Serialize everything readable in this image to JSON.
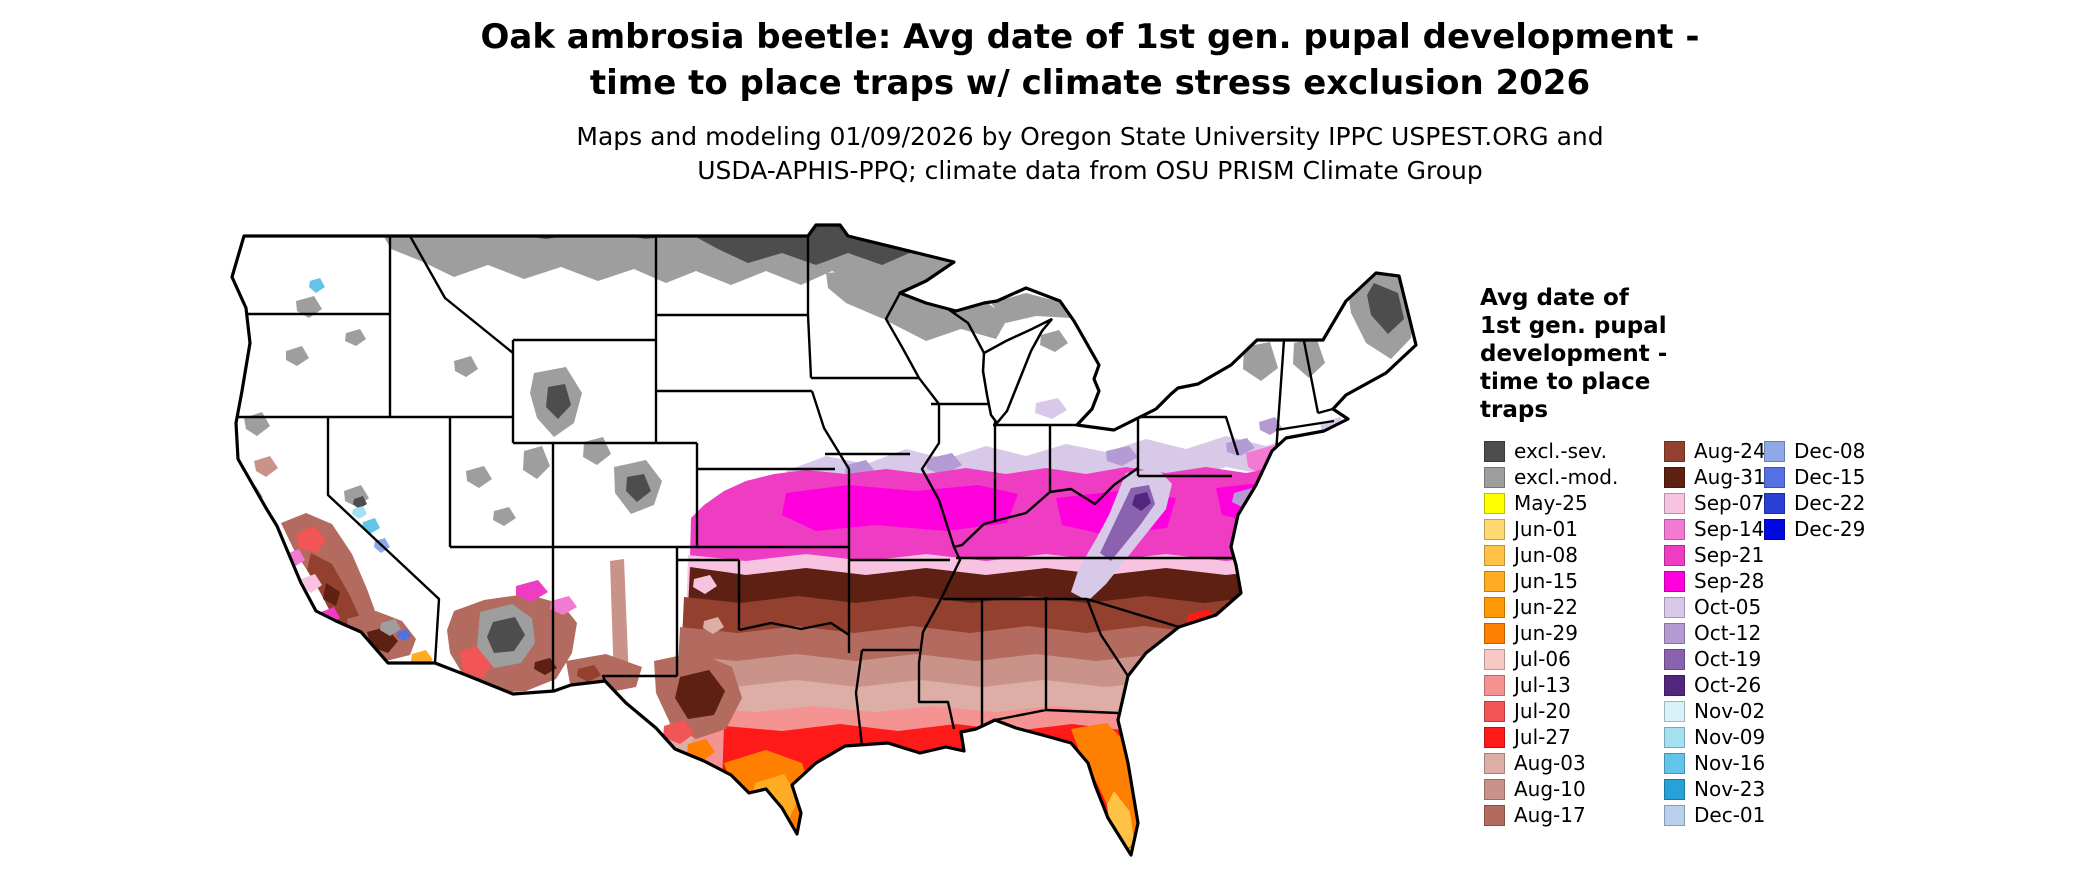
{
  "title": {
    "line1": "Oak ambrosia beetle: Avg date of 1st gen. pupal development -",
    "line2": "time to place traps w/ climate stress exclusion 2026"
  },
  "subtitle": {
    "line1": "Maps and modeling 01/09/2026 by Oregon State University IPPC USPEST.ORG and",
    "line2": "USDA-APHIS-PPQ; climate data from OSU PRISM Climate Group"
  },
  "legend": {
    "title_lines": [
      "Avg date of",
      "1st gen. pupal",
      "development -",
      "time to place",
      "traps"
    ],
    "columns": [
      {
        "entries": [
          {
            "label": "excl.-sev.",
            "color": "#4d4d4d"
          },
          {
            "label": "excl.-mod.",
            "color": "#9e9e9e"
          },
          {
            "label": "May-25",
            "color": "#ffff00"
          },
          {
            "label": "Jun-01",
            "color": "#ffd970"
          },
          {
            "label": "Jun-08",
            "color": "#ffc247"
          },
          {
            "label": "Jun-15",
            "color": "#ffab24"
          },
          {
            "label": "Jun-22",
            "color": "#ff9708"
          },
          {
            "label": "Jun-29",
            "color": "#ff8000"
          },
          {
            "label": "Jul-06",
            "color": "#f8c9c4"
          },
          {
            "label": "Jul-13",
            "color": "#f59393"
          },
          {
            "label": "Jul-20",
            "color": "#f25555"
          },
          {
            "label": "Jul-27",
            "color": "#ff1a1a"
          },
          {
            "label": "Aug-03",
            "color": "#dcaea6"
          },
          {
            "label": "Aug-10",
            "color": "#c9938a"
          },
          {
            "label": "Aug-17",
            "color": "#b26b5e"
          }
        ]
      },
      {
        "entries": [
          {
            "label": "Aug-24",
            "color": "#93402f"
          },
          {
            "label": "Aug-31",
            "color": "#5e2012"
          },
          {
            "label": "Sep-07",
            "color": "#f7c3e0"
          },
          {
            "label": "Sep-14",
            "color": "#f27ad2"
          },
          {
            "label": "Sep-21",
            "color": "#ee3cc3"
          },
          {
            "label": "Sep-28",
            "color": "#ff00dd"
          },
          {
            "label": "Oct-05",
            "color": "#d9c9e8"
          },
          {
            "label": "Oct-12",
            "color": "#b59bd4"
          },
          {
            "label": "Oct-19",
            "color": "#8a62b0"
          },
          {
            "label": "Oct-26",
            "color": "#53267d"
          },
          {
            "label": "Nov-02",
            "color": "#d9f2fa"
          },
          {
            "label": "Nov-09",
            "color": "#a3e0f2"
          },
          {
            "label": "Nov-16",
            "color": "#62c4e8"
          },
          {
            "label": "Nov-23",
            "color": "#28a0d8"
          },
          {
            "label": "Dec-01",
            "color": "#bad0ec"
          }
        ]
      },
      {
        "entries": [
          {
            "label": "Dec-08",
            "color": "#8fa8e8"
          },
          {
            "label": "Dec-15",
            "color": "#5570e0"
          },
          {
            "label": "Dec-22",
            "color": "#2a3fd4"
          },
          {
            "label": "Dec-29",
            "color": "#0008e0"
          }
        ]
      }
    ]
  }
}
